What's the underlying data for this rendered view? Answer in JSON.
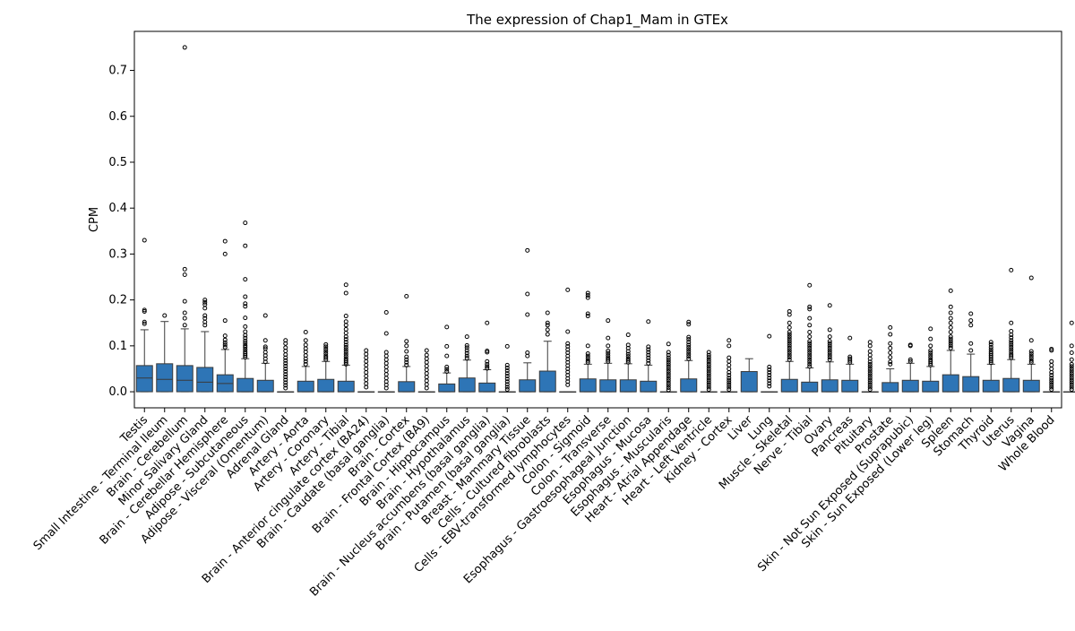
{
  "chart_data": {
    "type": "box",
    "title": "The expression of Chap1_Mam in GTEx",
    "xlabel": "",
    "ylabel": "CPM",
    "ylim": [
      -0.035,
      0.785
    ],
    "yticks": [
      0.0,
      0.1,
      0.2,
      0.3,
      0.4,
      0.5,
      0.6,
      0.7
    ],
    "ytick_labels": [
      "0.0",
      "0.1",
      "0.2",
      "0.3",
      "0.4",
      "0.5",
      "0.6",
      "0.7"
    ],
    "grid": false,
    "legend": "none",
    "box_color": "#2e75b6",
    "categories": [
      "Testis",
      "Small Intestine - Terminal Ileum",
      "Brain - Cerebellum",
      "Minor Salivary Gland",
      "Brain - Cerebellar Hemisphere",
      "Adipose - Subcutaneous",
      "Adipose - Visceral (Omentum)",
      "Adrenal Gland",
      "Artery - Aorta",
      "Artery - Coronary",
      "Artery - Tibial",
      "Brain - Anterior cingulate cortex (BA24)",
      "Brain - Caudate (basal ganglia)",
      "Brain - Cortex",
      "Brain - Frontal Cortex (BA9)",
      "Brain - Hippocampus",
      "Brain - Hypothalamus",
      "Brain - Nucleus accumbens (basal ganglia)",
      "Brain - Putamen (basal ganglia)",
      "Breast - Mammary Tissue",
      "Cells - Cultured fibroblasts",
      "Cells - EBV-transformed lymphocytes",
      "Colon - Sigmoid",
      "Colon - Transverse",
      "Esophagus - Gastroesophageal Junction",
      "Esophagus - Mucosa",
      "Esophagus - Muscularis",
      "Heart - Atrial Appendage",
      "Heart - Left Ventricle",
      "Kidney - Cortex",
      "Liver",
      "Lung",
      "Muscle - Skeletal",
      "Nerve - Tibial",
      "Ovary",
      "Pancreas",
      "Pituitary",
      "Prostate",
      "Skin - Not Sun Exposed (Suprapubic)",
      "Skin - Sun Exposed (Lower leg)",
      "Spleen",
      "Stomach",
      "Thyroid",
      "Uterus",
      "Vagina",
      "Whole Blood"
    ],
    "boxes": [
      {
        "q1": 0.0,
        "median": 0.03,
        "q3": 0.057,
        "whislo": 0.0,
        "whishi": 0.135,
        "fliers": [
          0.148,
          0.152,
          0.175,
          0.178,
          0.33
        ]
      },
      {
        "q1": 0.0,
        "median": 0.027,
        "q3": 0.061,
        "whislo": 0.0,
        "whishi": 0.153,
        "fliers": [
          0.166
        ]
      },
      {
        "q1": 0.0,
        "median": 0.025,
        "q3": 0.057,
        "whislo": 0.0,
        "whishi": 0.137,
        "fliers": [
          0.145,
          0.16,
          0.172,
          0.197,
          0.255,
          0.267,
          0.75
        ]
      },
      {
        "q1": 0.0,
        "median": 0.021,
        "q3": 0.053,
        "whislo": 0.0,
        "whishi": 0.131,
        "fliers": [
          0.145,
          0.152,
          0.16,
          0.166,
          0.182,
          0.19,
          0.195,
          0.2
        ]
      },
      {
        "q1": 0.0,
        "median": 0.018,
        "q3": 0.037,
        "whislo": 0.0,
        "whishi": 0.092,
        "fliers": [
          0.097,
          0.102,
          0.107,
          0.113,
          0.122,
          0.155,
          0.3,
          0.328
        ]
      },
      {
        "q1": 0.0,
        "median": 0.0,
        "q3": 0.029,
        "whislo": 0.0,
        "whishi": 0.072,
        "fliers": [
          0.075,
          0.079,
          0.083,
          0.087,
          0.092,
          0.097,
          0.101,
          0.106,
          0.111,
          0.117,
          0.123,
          0.131,
          0.142,
          0.161,
          0.186,
          0.192,
          0.207,
          0.245,
          0.318,
          0.368
        ]
      },
      {
        "q1": 0.0,
        "median": 0.0,
        "q3": 0.025,
        "whislo": 0.0,
        "whishi": 0.062,
        "fliers": [
          0.065,
          0.072,
          0.079,
          0.086,
          0.094,
          0.098,
          0.112,
          0.166
        ]
      },
      {
        "q1": 0.0,
        "median": 0.0,
        "q3": 0.0,
        "whislo": 0.0,
        "whishi": 0.0,
        "fliers": [
          0.008,
          0.014,
          0.02,
          0.026,
          0.032,
          0.038,
          0.044,
          0.05,
          0.056,
          0.062,
          0.068,
          0.074,
          0.081,
          0.089,
          0.096,
          0.105,
          0.112
        ]
      },
      {
        "q1": 0.0,
        "median": 0.0,
        "q3": 0.023,
        "whislo": 0.0,
        "whishi": 0.055,
        "fliers": [
          0.06,
          0.066,
          0.072,
          0.079,
          0.087,
          0.094,
          0.102,
          0.112,
          0.13
        ]
      },
      {
        "q1": 0.0,
        "median": 0.0,
        "q3": 0.027,
        "whislo": 0.0,
        "whishi": 0.066,
        "fliers": [
          0.07,
          0.074,
          0.078,
          0.083,
          0.088,
          0.093,
          0.098,
          0.103
        ]
      },
      {
        "q1": 0.0,
        "median": 0.0,
        "q3": 0.023,
        "whislo": 0.0,
        "whishi": 0.058,
        "fliers": [
          0.06,
          0.064,
          0.068,
          0.072,
          0.077,
          0.082,
          0.087,
          0.092,
          0.097,
          0.102,
          0.108,
          0.114,
          0.12,
          0.128,
          0.136,
          0.145,
          0.153,
          0.165,
          0.215,
          0.233
        ]
      },
      {
        "q1": 0.0,
        "median": 0.0,
        "q3": 0.0,
        "whislo": 0.0,
        "whishi": 0.0,
        "fliers": [
          0.01,
          0.018,
          0.026,
          0.034,
          0.042,
          0.05,
          0.058,
          0.066,
          0.074,
          0.082,
          0.09
        ]
      },
      {
        "q1": 0.0,
        "median": 0.0,
        "q3": 0.0,
        "whislo": 0.0,
        "whishi": 0.0,
        "fliers": [
          0.008,
          0.015,
          0.022,
          0.03,
          0.038,
          0.046,
          0.054,
          0.062,
          0.07,
          0.078,
          0.086,
          0.127,
          0.173
        ]
      },
      {
        "q1": 0.0,
        "median": 0.0,
        "q3": 0.022,
        "whislo": 0.0,
        "whishi": 0.055,
        "fliers": [
          0.058,
          0.064,
          0.07,
          0.076,
          0.088,
          0.1,
          0.11,
          0.208
        ]
      },
      {
        "q1": 0.0,
        "median": 0.0,
        "q3": 0.0,
        "whislo": 0.0,
        "whishi": 0.0,
        "fliers": [
          0.008,
          0.016,
          0.024,
          0.032,
          0.04,
          0.048,
          0.056,
          0.064,
          0.072,
          0.08,
          0.09
        ]
      },
      {
        "q1": 0.0,
        "median": 0.0,
        "q3": 0.017,
        "whislo": 0.0,
        "whishi": 0.041,
        "fliers": [
          0.044,
          0.049,
          0.054,
          0.078,
          0.099,
          0.141
        ]
      },
      {
        "q1": 0.0,
        "median": 0.0,
        "q3": 0.03,
        "whislo": 0.0,
        "whishi": 0.069,
        "fliers": [
          0.073,
          0.078,
          0.084,
          0.09,
          0.096,
          0.101,
          0.12
        ]
      },
      {
        "q1": 0.0,
        "median": 0.0,
        "q3": 0.019,
        "whislo": 0.0,
        "whishi": 0.048,
        "fliers": [
          0.051,
          0.055,
          0.06,
          0.066,
          0.086,
          0.089,
          0.15
        ]
      },
      {
        "q1": 0.0,
        "median": 0.0,
        "q3": 0.0,
        "whislo": 0.0,
        "whishi": 0.0,
        "fliers": [
          0.005,
          0.01,
          0.016,
          0.022,
          0.028,
          0.034,
          0.04,
          0.046,
          0.052,
          0.058,
          0.099
        ]
      },
      {
        "q1": 0.0,
        "median": 0.0,
        "q3": 0.026,
        "whislo": 0.0,
        "whishi": 0.063,
        "fliers": [
          0.078,
          0.085,
          0.168,
          0.213,
          0.308
        ]
      },
      {
        "q1": 0.0,
        "median": 0.0,
        "q3": 0.045,
        "whislo": 0.0,
        "whishi": 0.11,
        "fliers": [
          0.125,
          0.135,
          0.145,
          0.15,
          0.172
        ]
      },
      {
        "q1": 0.0,
        "median": 0.0,
        "q3": 0.0,
        "whislo": 0.0,
        "whishi": 0.0,
        "fliers": [
          0.015,
          0.022,
          0.029,
          0.036,
          0.043,
          0.05,
          0.057,
          0.064,
          0.071,
          0.078,
          0.085,
          0.092,
          0.099,
          0.105,
          0.131,
          0.222
        ]
      },
      {
        "q1": 0.0,
        "median": 0.0,
        "q3": 0.028,
        "whislo": 0.0,
        "whishi": 0.06,
        "fliers": [
          0.064,
          0.068,
          0.073,
          0.078,
          0.083,
          0.1,
          0.165,
          0.17,
          0.205,
          0.21,
          0.215
        ]
      },
      {
        "q1": 0.0,
        "median": 0.0,
        "q3": 0.026,
        "whislo": 0.0,
        "whishi": 0.062,
        "fliers": [
          0.066,
          0.07,
          0.074,
          0.079,
          0.084,
          0.089,
          0.1,
          0.117,
          0.155
        ]
      },
      {
        "q1": 0.0,
        "median": 0.0,
        "q3": 0.026,
        "whislo": 0.0,
        "whishi": 0.061,
        "fliers": [
          0.064,
          0.068,
          0.072,
          0.077,
          0.082,
          0.088,
          0.095,
          0.102,
          0.124
        ]
      },
      {
        "q1": 0.0,
        "median": 0.0,
        "q3": 0.023,
        "whislo": 0.0,
        "whishi": 0.058,
        "fliers": [
          0.062,
          0.068,
          0.074,
          0.08,
          0.086,
          0.092,
          0.098,
          0.153
        ]
      },
      {
        "q1": 0.0,
        "median": 0.0,
        "q3": 0.0,
        "whislo": 0.0,
        "whishi": 0.0,
        "fliers": [
          0.004,
          0.009,
          0.014,
          0.019,
          0.024,
          0.029,
          0.034,
          0.039,
          0.044,
          0.049,
          0.054,
          0.059,
          0.064,
          0.069,
          0.074,
          0.08,
          0.086,
          0.104
        ]
      },
      {
        "q1": 0.0,
        "median": 0.0,
        "q3": 0.028,
        "whislo": 0.0,
        "whishi": 0.068,
        "fliers": [
          0.072,
          0.077,
          0.082,
          0.087,
          0.092,
          0.097,
          0.102,
          0.108,
          0.114,
          0.119,
          0.147,
          0.152
        ]
      },
      {
        "q1": 0.0,
        "median": 0.0,
        "q3": 0.0,
        "whislo": 0.0,
        "whishi": 0.0,
        "fliers": [
          0.005,
          0.01,
          0.015,
          0.02,
          0.025,
          0.03,
          0.035,
          0.04,
          0.045,
          0.05,
          0.055,
          0.06,
          0.065,
          0.07,
          0.075,
          0.08,
          0.086
        ]
      },
      {
        "q1": 0.0,
        "median": 0.0,
        "q3": 0.0,
        "whislo": 0.0,
        "whishi": 0.0,
        "fliers": [
          0.005,
          0.01,
          0.015,
          0.02,
          0.025,
          0.03,
          0.036,
          0.042,
          0.05,
          0.058,
          0.066,
          0.074,
          0.1,
          0.112
        ]
      },
      {
        "q1": 0.0,
        "median": 0.0,
        "q3": 0.044,
        "whislo": 0.0,
        "whishi": 0.072,
        "fliers": []
      },
      {
        "q1": 0.0,
        "median": 0.0,
        "q3": 0.0,
        "whislo": 0.0,
        "whishi": 0.0,
        "fliers": [
          0.012,
          0.018,
          0.024,
          0.03,
          0.036,
          0.042,
          0.048,
          0.054,
          0.121
        ]
      },
      {
        "q1": 0.0,
        "median": 0.0,
        "q3": 0.027,
        "whislo": 0.0,
        "whishi": 0.066,
        "fliers": [
          0.07,
          0.075,
          0.08,
          0.085,
          0.09,
          0.095,
          0.1,
          0.105,
          0.11,
          0.115,
          0.12,
          0.125,
          0.13,
          0.14,
          0.15,
          0.168,
          0.175
        ]
      },
      {
        "q1": 0.0,
        "median": 0.0,
        "q3": 0.021,
        "whislo": 0.0,
        "whishi": 0.052,
        "fliers": [
          0.055,
          0.06,
          0.065,
          0.07,
          0.075,
          0.08,
          0.085,
          0.09,
          0.095,
          0.1,
          0.105,
          0.11,
          0.12,
          0.13,
          0.145,
          0.16,
          0.18,
          0.185,
          0.232
        ]
      },
      {
        "q1": 0.0,
        "median": 0.0,
        "q3": 0.026,
        "whislo": 0.0,
        "whishi": 0.065,
        "fliers": [
          0.07,
          0.075,
          0.08,
          0.085,
          0.09,
          0.095,
          0.1,
          0.105,
          0.11,
          0.12,
          0.135,
          0.188
        ]
      },
      {
        "q1": 0.0,
        "median": 0.0,
        "q3": 0.025,
        "whislo": 0.0,
        "whishi": 0.06,
        "fliers": [
          0.064,
          0.068,
          0.072,
          0.076,
          0.117
        ]
      },
      {
        "q1": 0.0,
        "median": 0.0,
        "q3": 0.0,
        "whislo": 0.0,
        "whishi": 0.0,
        "fliers": [
          0.005,
          0.01,
          0.015,
          0.02,
          0.025,
          0.03,
          0.035,
          0.04,
          0.045,
          0.05,
          0.055,
          0.06,
          0.065,
          0.072,
          0.08,
          0.088,
          0.1,
          0.108
        ]
      },
      {
        "q1": 0.0,
        "median": 0.0,
        "q3": 0.02,
        "whislo": 0.0,
        "whishi": 0.05,
        "fliers": [
          0.06,
          0.065,
          0.075,
          0.085,
          0.095,
          0.105,
          0.125,
          0.14
        ]
      },
      {
        "q1": 0.0,
        "median": 0.0,
        "q3": 0.025,
        "whislo": 0.0,
        "whishi": 0.062,
        "fliers": [
          0.066,
          0.07,
          0.1,
          0.102
        ]
      },
      {
        "q1": 0.0,
        "median": 0.0,
        "q3": 0.023,
        "whislo": 0.0,
        "whishi": 0.055,
        "fliers": [
          0.058,
          0.062,
          0.066,
          0.07,
          0.075,
          0.08,
          0.085,
          0.09,
          0.1,
          0.115,
          0.137
        ]
      },
      {
        "q1": 0.0,
        "median": 0.0,
        "q3": 0.037,
        "whislo": 0.0,
        "whishi": 0.09,
        "fliers": [
          0.095,
          0.1,
          0.105,
          0.11,
          0.115,
          0.12,
          0.13,
          0.14,
          0.15,
          0.16,
          0.172,
          0.185,
          0.22
        ]
      },
      {
        "q1": 0.0,
        "median": 0.0,
        "q3": 0.033,
        "whislo": 0.0,
        "whishi": 0.082,
        "fliers": [
          0.09,
          0.105,
          0.145,
          0.155,
          0.17
        ]
      },
      {
        "q1": 0.0,
        "median": 0.0,
        "q3": 0.025,
        "whislo": 0.0,
        "whishi": 0.06,
        "fliers": [
          0.063,
          0.067,
          0.071,
          0.075,
          0.079,
          0.083,
          0.087,
          0.092,
          0.097,
          0.103,
          0.108
        ]
      },
      {
        "q1": 0.0,
        "median": 0.0,
        "q3": 0.029,
        "whislo": 0.0,
        "whishi": 0.07,
        "fliers": [
          0.074,
          0.078,
          0.082,
          0.087,
          0.092,
          0.097,
          0.102,
          0.107,
          0.112,
          0.118,
          0.124,
          0.132,
          0.15,
          0.265
        ]
      },
      {
        "q1": 0.0,
        "median": 0.0,
        "q3": 0.025,
        "whislo": 0.0,
        "whishi": 0.06,
        "fliers": [
          0.064,
          0.068,
          0.073,
          0.078,
          0.083,
          0.088,
          0.112,
          0.248
        ]
      },
      {
        "q1": 0.0,
        "median": 0.0,
        "q3": 0.0,
        "whislo": 0.0,
        "whishi": 0.0,
        "fliers": [
          0.005,
          0.01,
          0.015,
          0.02,
          0.025,
          0.03,
          0.036,
          0.042,
          0.05,
          0.058,
          0.066,
          0.09,
          0.093
        ]
      },
      {
        "q1": 0.0,
        "median": 0.0,
        "q3": 0.0,
        "whislo": 0.0,
        "whishi": 0.0,
        "fliers": [
          0.005,
          0.01,
          0.015,
          0.02,
          0.025,
          0.03,
          0.035,
          0.04,
          0.045,
          0.05,
          0.055,
          0.06,
          0.07,
          0.085,
          0.1,
          0.15
        ]
      }
    ]
  }
}
